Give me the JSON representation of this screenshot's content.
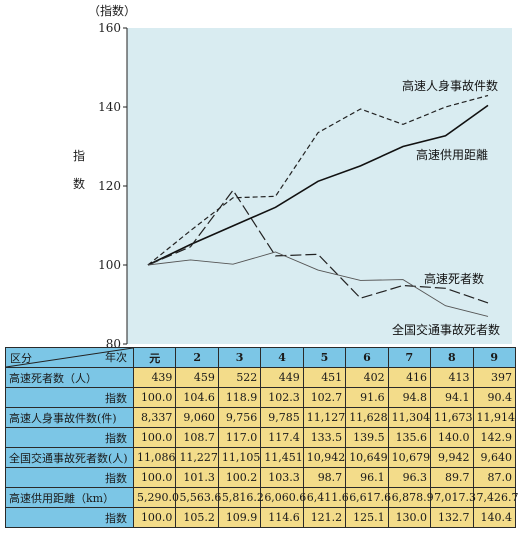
{
  "chart_data": {
    "type": "line",
    "y_unit": "（指数）",
    "ylabel": "指数",
    "ylim": [
      80,
      160
    ],
    "y_ticks": [
      "80",
      "100",
      "120",
      "140",
      "160"
    ],
    "categories": [
      "元",
      "2",
      "3",
      "4",
      "5",
      "6",
      "7",
      "8",
      "9"
    ],
    "series": [
      {
        "name": "高速人身事故件数",
        "style": "dashed",
        "values": [
          100.0,
          108.7,
          117.0,
          117.4,
          133.5,
          139.5,
          135.6,
          140.0,
          142.9
        ]
      },
      {
        "name": "高速供用距離",
        "style": "solid-bold",
        "values": [
          100.0,
          105.2,
          109.9,
          114.6,
          121.2,
          125.1,
          130.0,
          132.7,
          140.4
        ]
      },
      {
        "name": "高速死者数",
        "style": "long-dash",
        "values": [
          100.0,
          104.6,
          118.9,
          102.3,
          102.7,
          91.6,
          94.8,
          94.1,
          90.4
        ]
      },
      {
        "name": "全国交通事故死者数",
        "style": "thin",
        "values": [
          100.0,
          101.3,
          100.2,
          103.3,
          98.7,
          96.1,
          96.3,
          89.7,
          87.0
        ]
      }
    ],
    "colors": {
      "plot_bg": "#d9ecf1",
      "header_bg": "#7cc6e6",
      "cell_bg": "#f3dc8a"
    }
  },
  "table": {
    "corner_left": "区分",
    "corner_right": "年次",
    "years": [
      "元",
      "2",
      "3",
      "4",
      "5",
      "6",
      "7",
      "8",
      "9"
    ],
    "sub_label": "指数",
    "rows": [
      {
        "label": "高速死者数（人）",
        "values": [
          "439",
          "459",
          "522",
          "449",
          "451",
          "402",
          "416",
          "413",
          "397"
        ],
        "index": [
          "100.0",
          "104.6",
          "118.9",
          "102.3",
          "102.7",
          "91.6",
          "94.8",
          "94.1",
          "90.4"
        ]
      },
      {
        "label": "高速人身事故件数(件)",
        "values": [
          "8,337",
          "9,060",
          "9,756",
          "9,785",
          "11,127",
          "11,628",
          "11,304",
          "11,673",
          "11,914"
        ],
        "index": [
          "100.0",
          "108.7",
          "117.0",
          "117.4",
          "133.5",
          "139.5",
          "135.6",
          "140.0",
          "142.9"
        ]
      },
      {
        "label": "全国交通事故死者数(人)",
        "values": [
          "11,086",
          "11,227",
          "11,105",
          "11,451",
          "10,942",
          "10,649",
          "10,679",
          "9,942",
          "9,640"
        ],
        "index": [
          "100.0",
          "101.3",
          "100.2",
          "103.3",
          "98.7",
          "96.1",
          "96.3",
          "89.7",
          "87.0"
        ]
      },
      {
        "label": "高速供用距離（km）",
        "values": [
          "5,290.0",
          "5,563.6",
          "5,816.2",
          "6,060.6",
          "6,411.6",
          "6,617.6",
          "6,878.9",
          "7,017.3",
          "7,426.7"
        ],
        "index": [
          "100.0",
          "105.2",
          "109.9",
          "114.6",
          "121.2",
          "125.1",
          "130.0",
          "132.7",
          "140.4"
        ]
      }
    ]
  }
}
